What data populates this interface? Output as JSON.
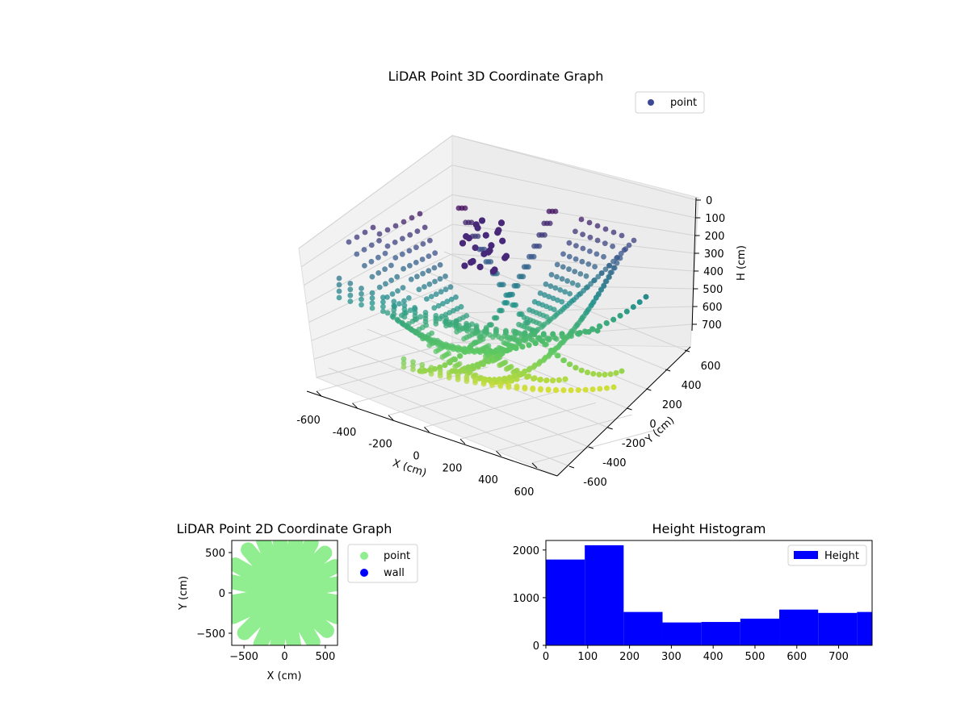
{
  "chart_data": [
    {
      "type": "scatter",
      "projection": "3d",
      "title": "LiDAR Point 3D Coordinate Graph",
      "xlabel": "X (cm)",
      "ylabel": "Y (cm)",
      "zlabel": "H (cm)",
      "xlim": [
        -700,
        700
      ],
      "ylim": [
        -700,
        700
      ],
      "zlim": [
        780,
        0
      ],
      "z_inverted": true,
      "xticks": [
        -600,
        -400,
        -200,
        0,
        200,
        400,
        600
      ],
      "yticks": [
        -600,
        -400,
        -200,
        0,
        200,
        400,
        600
      ],
      "zticks": [
        0,
        100,
        200,
        300,
        400,
        500,
        600,
        700
      ],
      "legend": {
        "entries": [
          "point"
        ],
        "placement": "top-right"
      },
      "colormap": "viridis",
      "marker_color": "#3b4994",
      "grid": true,
      "series": [
        {
          "name": "point",
          "description_shape": "radial fans of parabolic arcs converging toward center",
          "sample_points": [
            {
              "x": -500,
              "y": 450,
              "h": 200
            },
            {
              "x": -250,
              "y": 0,
              "h": 650
            },
            {
              "x": 0,
              "y": -250,
              "h": 700
            },
            {
              "x": 300,
              "y": 200,
              "h": 600
            },
            {
              "x": 500,
              "y": 500,
              "h": 150
            },
            {
              "x": -100,
              "y": 100,
              "h": 60
            },
            {
              "x": 600,
              "y": -200,
              "h": 350
            },
            {
              "x": -600,
              "y": -300,
              "h": 380
            }
          ]
        }
      ]
    },
    {
      "type": "scatter",
      "title": "LiDAR Point 2D Coordinate Graph",
      "xlabel": "X (cm)",
      "ylabel": "Y (cm)",
      "xlim": [
        -650,
        650
      ],
      "ylim": [
        -650,
        650
      ],
      "xticks": [
        -500,
        0,
        500
      ],
      "yticks": [
        -500,
        0,
        500
      ],
      "legend": {
        "entries": [
          "point",
          "wall"
        ],
        "placement": "outside-right"
      },
      "series": [
        {
          "name": "point",
          "color": "#90ee90"
        },
        {
          "name": "wall",
          "color": "#0000ff"
        }
      ]
    },
    {
      "type": "bar",
      "subtype": "histogram",
      "title": "Height Histogram",
      "xlim": [
        0,
        780
      ],
      "ylim": [
        0,
        2200
      ],
      "xticks": [
        0,
        100,
        200,
        300,
        400,
        500,
        600,
        700
      ],
      "yticks": [
        0,
        1000,
        2000
      ],
      "bin_edges": [
        0,
        93,
        186,
        279,
        372,
        465,
        558,
        651,
        744,
        837
      ],
      "values": [
        1800,
        2100,
        700,
        480,
        490,
        560,
        750,
        680,
        700
      ],
      "color": "#0000ff",
      "legend": {
        "entries": [
          "Height"
        ],
        "placement": "top-right"
      }
    }
  ]
}
